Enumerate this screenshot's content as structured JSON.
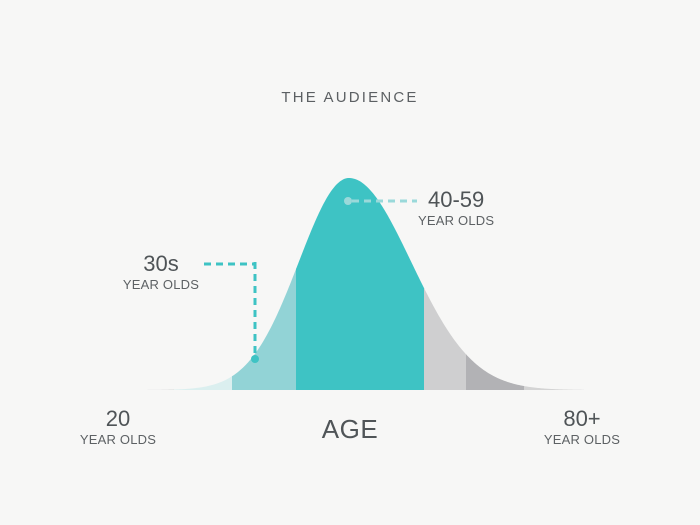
{
  "title": "THE AUDIENCE",
  "chart_data": {
    "type": "area",
    "xlabel": "AGE",
    "ylabel": "",
    "segments": [
      {
        "color": "#d2d3d3"
      },
      {
        "color": "#dbefef"
      },
      {
        "color": "#92d3d6"
      },
      {
        "color": "#3ec3c4"
      },
      {
        "color": "#cfcfd0"
      },
      {
        "color": "#b2b2b5"
      },
      {
        "color": "#d4d4d4"
      }
    ],
    "annotations": {
      "peak": {
        "value": "40-59",
        "unit": "YEAR OLDS"
      },
      "thirties": {
        "value": "30s",
        "unit": "YEAR OLDS"
      }
    },
    "x_ends": {
      "min": {
        "value": "20",
        "unit": "YEAR OLDS"
      },
      "max": {
        "value": "80+",
        "unit": "YEAR OLDS"
      }
    }
  },
  "colors": {
    "accent": "#3ec3c4",
    "accent_light": "#92d3d6",
    "dashed_light": "#9ad9da",
    "text": "#555a5c"
  }
}
